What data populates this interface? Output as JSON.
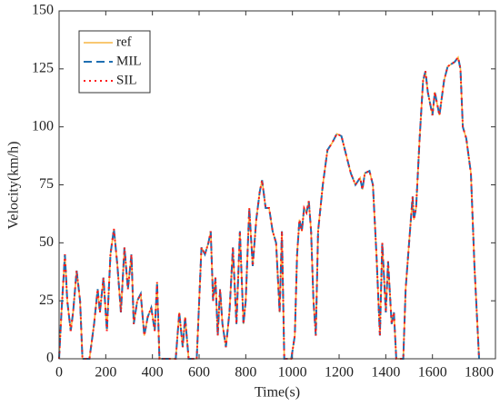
{
  "chart_data": {
    "type": "line",
    "xlabel": "Time(s)",
    "ylabel": "Velocity(km/h)",
    "x": [
      0,
      10,
      25,
      35,
      50,
      60,
      75,
      90,
      100,
      130,
      150,
      165,
      175,
      190,
      205,
      220,
      235,
      250,
      265,
      280,
      295,
      310,
      320,
      335,
      350,
      365,
      380,
      395,
      410,
      420,
      430,
      500,
      515,
      530,
      540,
      555,
      590,
      610,
      625,
      640,
      650,
      660,
      670,
      680,
      690,
      700,
      715,
      730,
      745,
      760,
      775,
      790,
      800,
      815,
      830,
      845,
      860,
      870,
      885,
      900,
      915,
      930,
      945,
      955,
      965,
      995,
      1010,
      1020,
      1030,
      1040,
      1050,
      1060,
      1070,
      1080,
      1090,
      1100,
      1110,
      1130,
      1150,
      1170,
      1190,
      1210,
      1230,
      1250,
      1270,
      1290,
      1300,
      1310,
      1330,
      1345,
      1360,
      1375,
      1385,
      1400,
      1410,
      1425,
      1435,
      1445,
      1475,
      1485,
      1500,
      1515,
      1520,
      1530,
      1545,
      1560,
      1570,
      1580,
      1600,
      1610,
      1620,
      1630,
      1650,
      1665,
      1680,
      1695,
      1710,
      1720,
      1730,
      1745,
      1765,
      1780,
      1800
    ],
    "series": [
      {
        "name": "ref",
        "color": "#f7b643",
        "dash": "solid",
        "values": [
          0,
          20,
          45,
          25,
          12,
          20,
          38,
          25,
          0,
          0,
          15,
          30,
          20,
          35,
          12,
          45,
          56,
          40,
          20,
          48,
          30,
          45,
          15,
          25,
          28,
          10,
          18,
          22,
          12,
          33,
          0,
          0,
          20,
          5,
          18,
          0,
          0,
          48,
          45,
          50,
          55,
          25,
          35,
          10,
          30,
          15,
          5,
          20,
          48,
          15,
          55,
          15,
          25,
          65,
          40,
          60,
          72,
          77,
          65,
          65,
          55,
          50,
          20,
          55,
          0,
          0,
          10,
          45,
          60,
          55,
          65,
          63,
          68,
          55,
          25,
          10,
          55,
          75,
          90,
          93,
          97,
          96,
          88,
          80,
          75,
          78,
          73,
          80,
          81,
          75,
          45,
          10,
          50,
          20,
          42,
          15,
          20,
          0,
          0,
          30,
          50,
          70,
          60,
          65,
          95,
          120,
          124,
          115,
          105,
          115,
          110,
          105,
          120,
          126,
          127,
          128,
          130,
          125,
          100,
          95,
          80,
          40,
          0
        ]
      },
      {
        "name": "MIL",
        "color": "#1f6fb2",
        "dash": "dashed",
        "values": [
          0,
          20,
          45,
          25,
          12,
          20,
          38,
          25,
          0,
          0,
          15,
          30,
          20,
          35,
          12,
          45,
          56,
          40,
          20,
          48,
          30,
          45,
          15,
          25,
          28,
          10,
          18,
          22,
          12,
          33,
          0,
          0,
          20,
          5,
          18,
          0,
          0,
          48,
          45,
          50,
          55,
          25,
          35,
          10,
          30,
          15,
          5,
          20,
          48,
          15,
          55,
          15,
          25,
          65,
          40,
          60,
          72,
          77,
          65,
          65,
          55,
          50,
          20,
          55,
          0,
          0,
          10,
          45,
          60,
          55,
          65,
          63,
          68,
          55,
          25,
          10,
          55,
          75,
          90,
          93,
          97,
          96,
          88,
          80,
          75,
          78,
          73,
          80,
          81,
          75,
          45,
          10,
          50,
          20,
          42,
          15,
          20,
          0,
          0,
          30,
          50,
          70,
          60,
          65,
          95,
          120,
          124,
          115,
          105,
          115,
          110,
          105,
          120,
          126,
          127,
          128,
          130,
          125,
          100,
          95,
          80,
          40,
          0
        ]
      },
      {
        "name": "SIL",
        "color": "#ff1a1a",
        "dash": "dotted",
        "values": [
          0,
          20,
          45,
          25,
          12,
          20,
          38,
          25,
          0,
          0,
          15,
          30,
          20,
          35,
          12,
          45,
          56,
          40,
          20,
          48,
          30,
          45,
          15,
          25,
          28,
          10,
          18,
          22,
          12,
          33,
          0,
          0,
          20,
          5,
          18,
          0,
          0,
          48,
          45,
          50,
          55,
          25,
          35,
          10,
          30,
          15,
          5,
          20,
          48,
          15,
          55,
          15,
          25,
          65,
          40,
          60,
          72,
          77,
          65,
          65,
          55,
          50,
          20,
          55,
          0,
          0,
          10,
          45,
          60,
          55,
          65,
          63,
          68,
          55,
          25,
          10,
          55,
          75,
          90,
          93,
          97,
          96,
          88,
          80,
          75,
          78,
          73,
          80,
          81,
          75,
          45,
          10,
          50,
          20,
          42,
          15,
          20,
          0,
          0,
          30,
          50,
          70,
          60,
          65,
          95,
          120,
          124,
          115,
          105,
          115,
          110,
          105,
          120,
          126,
          127,
          128,
          130,
          125,
          100,
          95,
          80,
          40,
          0
        ]
      }
    ],
    "xlim": [
      0,
      1870
    ],
    "xticks": [
      0,
      200,
      400,
      600,
      800,
      1000,
      1200,
      1400,
      1600,
      1800
    ],
    "ylim": [
      0,
      150
    ],
    "yticks": [
      0,
      25,
      50,
      75,
      100,
      125,
      150
    ],
    "legend": "upper left",
    "grid": false
  }
}
